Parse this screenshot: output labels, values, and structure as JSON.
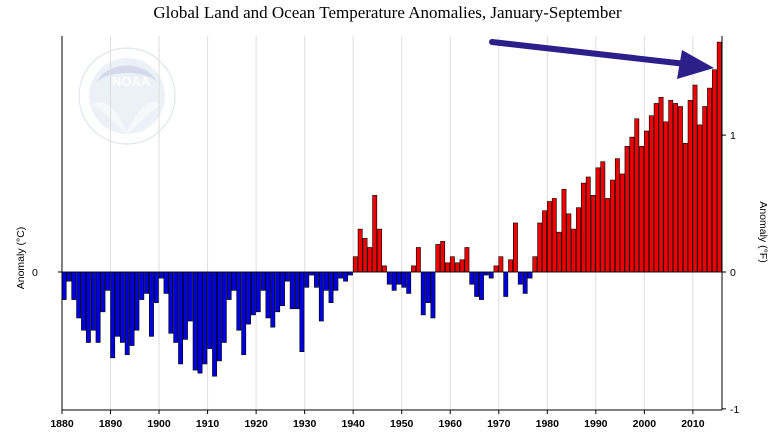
{
  "title": "Global Land and Ocean Temperature Anomalies, January-September",
  "colors": {
    "positive": "#ee0000",
    "negative": "#0000dd",
    "arrow": "#2c1f8a",
    "grid": "#dddddd"
  },
  "chart_data": {
    "type": "bar",
    "title": "Global Land and Ocean Temperature Anomalies, January-September",
    "xlabel": "",
    "ylabel_left": "Anomaly (°C)",
    "ylabel_right": "Anomaly (°F)",
    "x_ticks": [
      "1880",
      "1890",
      "1900",
      "1910",
      "1920",
      "1930",
      "1940",
      "1950",
      "1960",
      "1970",
      "1980",
      "1990",
      "2000",
      "2010"
    ],
    "y_ticks_left": [
      "0"
    ],
    "y_ticks_right": [
      "1",
      "0",
      "-1"
    ],
    "ylim_left": [
      -0.77,
      0.77
    ],
    "ylim_right": [
      -1.0,
      1.0
    ],
    "grid": "vertical",
    "annotations": [
      "arrow pointing to 2015 bar"
    ],
    "x": [
      1880,
      1881,
      1882,
      1883,
      1884,
      1885,
      1886,
      1887,
      1888,
      1889,
      1890,
      1891,
      1892,
      1893,
      1894,
      1895,
      1896,
      1897,
      1898,
      1899,
      1900,
      1901,
      1902,
      1903,
      1904,
      1905,
      1906,
      1907,
      1908,
      1909,
      1910,
      1911,
      1912,
      1913,
      1914,
      1915,
      1916,
      1917,
      1918,
      1919,
      1920,
      1921,
      1922,
      1923,
      1924,
      1925,
      1926,
      1927,
      1928,
      1929,
      1930,
      1931,
      1932,
      1933,
      1934,
      1935,
      1936,
      1937,
      1938,
      1939,
      1940,
      1941,
      1942,
      1943,
      1944,
      1945,
      1946,
      1947,
      1948,
      1949,
      1950,
      1951,
      1952,
      1953,
      1954,
      1955,
      1956,
      1957,
      1958,
      1959,
      1960,
      1961,
      1962,
      1963,
      1964,
      1965,
      1966,
      1967,
      1968,
      1969,
      1970,
      1971,
      1972,
      1973,
      1974,
      1975,
      1976,
      1977,
      1978,
      1979,
      1980,
      1981,
      1982,
      1983,
      1984,
      1985,
      1986,
      1987,
      1988,
      1989,
      1990,
      1991,
      1992,
      1993,
      1994,
      1995,
      1996,
      1997,
      1998,
      1999,
      2000,
      2001,
      2002,
      2003,
      2004,
      2005,
      2006,
      2007,
      2008,
      2009,
      2010,
      2011,
      2012,
      2013,
      2014,
      2015
    ],
    "values": [
      -0.09,
      -0.03,
      -0.09,
      -0.15,
      -0.19,
      -0.23,
      -0.19,
      -0.23,
      -0.13,
      -0.06,
      -0.28,
      -0.21,
      -0.23,
      -0.27,
      -0.24,
      -0.19,
      -0.09,
      -0.07,
      -0.21,
      -0.1,
      -0.02,
      -0.07,
      -0.2,
      -0.23,
      -0.3,
      -0.22,
      -0.16,
      -0.32,
      -0.33,
      -0.3,
      -0.25,
      -0.34,
      -0.29,
      -0.23,
      -0.09,
      -0.06,
      -0.19,
      -0.27,
      -0.17,
      -0.14,
      -0.13,
      -0.06,
      -0.15,
      -0.18,
      -0.13,
      -0.11,
      -0.03,
      -0.12,
      -0.12,
      -0.26,
      -0.05,
      -0.01,
      -0.05,
      -0.16,
      -0.06,
      -0.1,
      -0.06,
      -0.02,
      -0.03,
      -0.01,
      0.05,
      0.14,
      0.11,
      0.08,
      0.25,
      0.14,
      0.02,
      -0.04,
      -0.06,
      -0.04,
      -0.05,
      -0.07,
      0.02,
      0.08,
      -0.14,
      -0.1,
      -0.15,
      0.09,
      0.1,
      0.03,
      0.05,
      0.03,
      0.04,
      0.08,
      -0.04,
      -0.08,
      -0.09,
      -0.01,
      -0.02,
      0.02,
      0.05,
      -0.08,
      0.04,
      0.16,
      -0.04,
      -0.07,
      -0.02,
      0.05,
      0.16,
      0.2,
      0.23,
      0.24,
      0.13,
      0.27,
      0.19,
      0.14,
      0.21,
      0.29,
      0.31,
      0.25,
      0.34,
      0.36,
      0.24,
      0.3,
      0.37,
      0.32,
      0.41,
      0.44,
      0.5,
      0.41,
      0.46,
      0.51,
      0.55,
      0.57,
      0.49,
      0.56,
      0.55,
      0.54,
      0.42,
      0.56,
      0.61,
      0.48,
      0.54,
      0.6,
      0.66,
      0.75
    ]
  }
}
